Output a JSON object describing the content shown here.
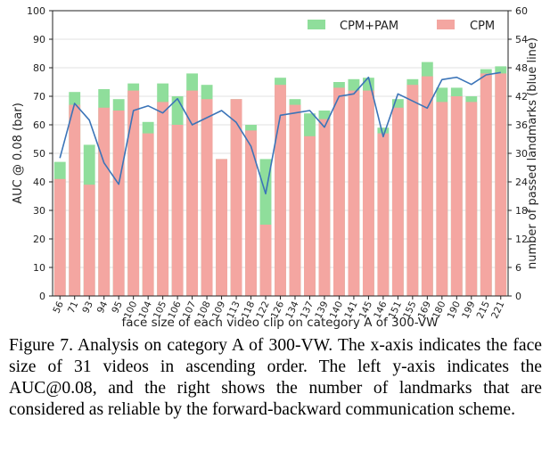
{
  "chart_data": {
    "type": "bar",
    "categories": [
      "56",
      "71",
      "93",
      "94",
      "95",
      "100",
      "104",
      "105",
      "106",
      "107",
      "108",
      "109",
      "113",
      "118",
      "122",
      "126",
      "134",
      "137",
      "139",
      "140",
      "141",
      "145",
      "146",
      "151",
      "155",
      "169",
      "180",
      "190",
      "199",
      "215",
      "221"
    ],
    "series": [
      {
        "name": "CPM",
        "kind": "bar",
        "axis": "left",
        "color": "#f4a6a1",
        "values": [
          41,
          67,
          39,
          66,
          65,
          72,
          57,
          68,
          60,
          72,
          69,
          48,
          69,
          58,
          25,
          74,
          67,
          56,
          62,
          73,
          72,
          72,
          57,
          66,
          74,
          77,
          68,
          70,
          68,
          78,
          78
        ]
      },
      {
        "name": "CPM+PAM",
        "kind": "bar",
        "axis": "left",
        "color": "#8fde9b",
        "values": [
          47,
          71.5,
          53,
          72.5,
          69,
          74.5,
          61,
          74.5,
          70,
          78,
          74,
          48,
          69,
          60,
          48,
          76.5,
          69,
          64,
          65,
          75,
          76,
          76.5,
          59,
          69,
          76,
          82,
          73,
          73,
          70,
          79.5,
          80.5
        ]
      },
      {
        "name": "passed landmarks",
        "kind": "line",
        "axis": "right",
        "color": "#3b74b8",
        "values": [
          29,
          40.5,
          37,
          28,
          23.5,
          39,
          40,
          38.5,
          41.5,
          36,
          37.5,
          39,
          36.5,
          31.5,
          21.5,
          38,
          38.5,
          39,
          35.5,
          42,
          42.5,
          46,
          33.5,
          42.5,
          41,
          39.5,
          45.5,
          46,
          44.5,
          46.5,
          47
        ]
      }
    ],
    "xlabel": "face size of each video clip on category A of 300-VW",
    "ylabel": "AUC @ 0.08 (bar)",
    "y2label": "number of passed landmarks (blue line)",
    "ylim": [
      0,
      100
    ],
    "y2lim": [
      0,
      60
    ],
    "yticks": [
      "0",
      "10",
      "20",
      "30",
      "40",
      "50",
      "60",
      "70",
      "80",
      "90",
      "100"
    ],
    "y2ticks": [
      "0",
      "6",
      "12",
      "18",
      "24",
      "30",
      "36",
      "42",
      "48",
      "54",
      "60"
    ],
    "legend": [
      {
        "label": "CPM+PAM",
        "color": "#8fde9b"
      },
      {
        "label": "CPM",
        "color": "#f4a6a1"
      }
    ],
    "grid": "y-major",
    "legend_placement": "top-right"
  },
  "caption": {
    "text": "Figure 7.   Analysis on category A of 300-VW. The x-axis indicates the face size of 31 videos in ascending order.  The left y-axis indicates the AUC@0.08, and the right shows the number of landmarks that are considered as reliable by the forward-backward communication scheme."
  }
}
